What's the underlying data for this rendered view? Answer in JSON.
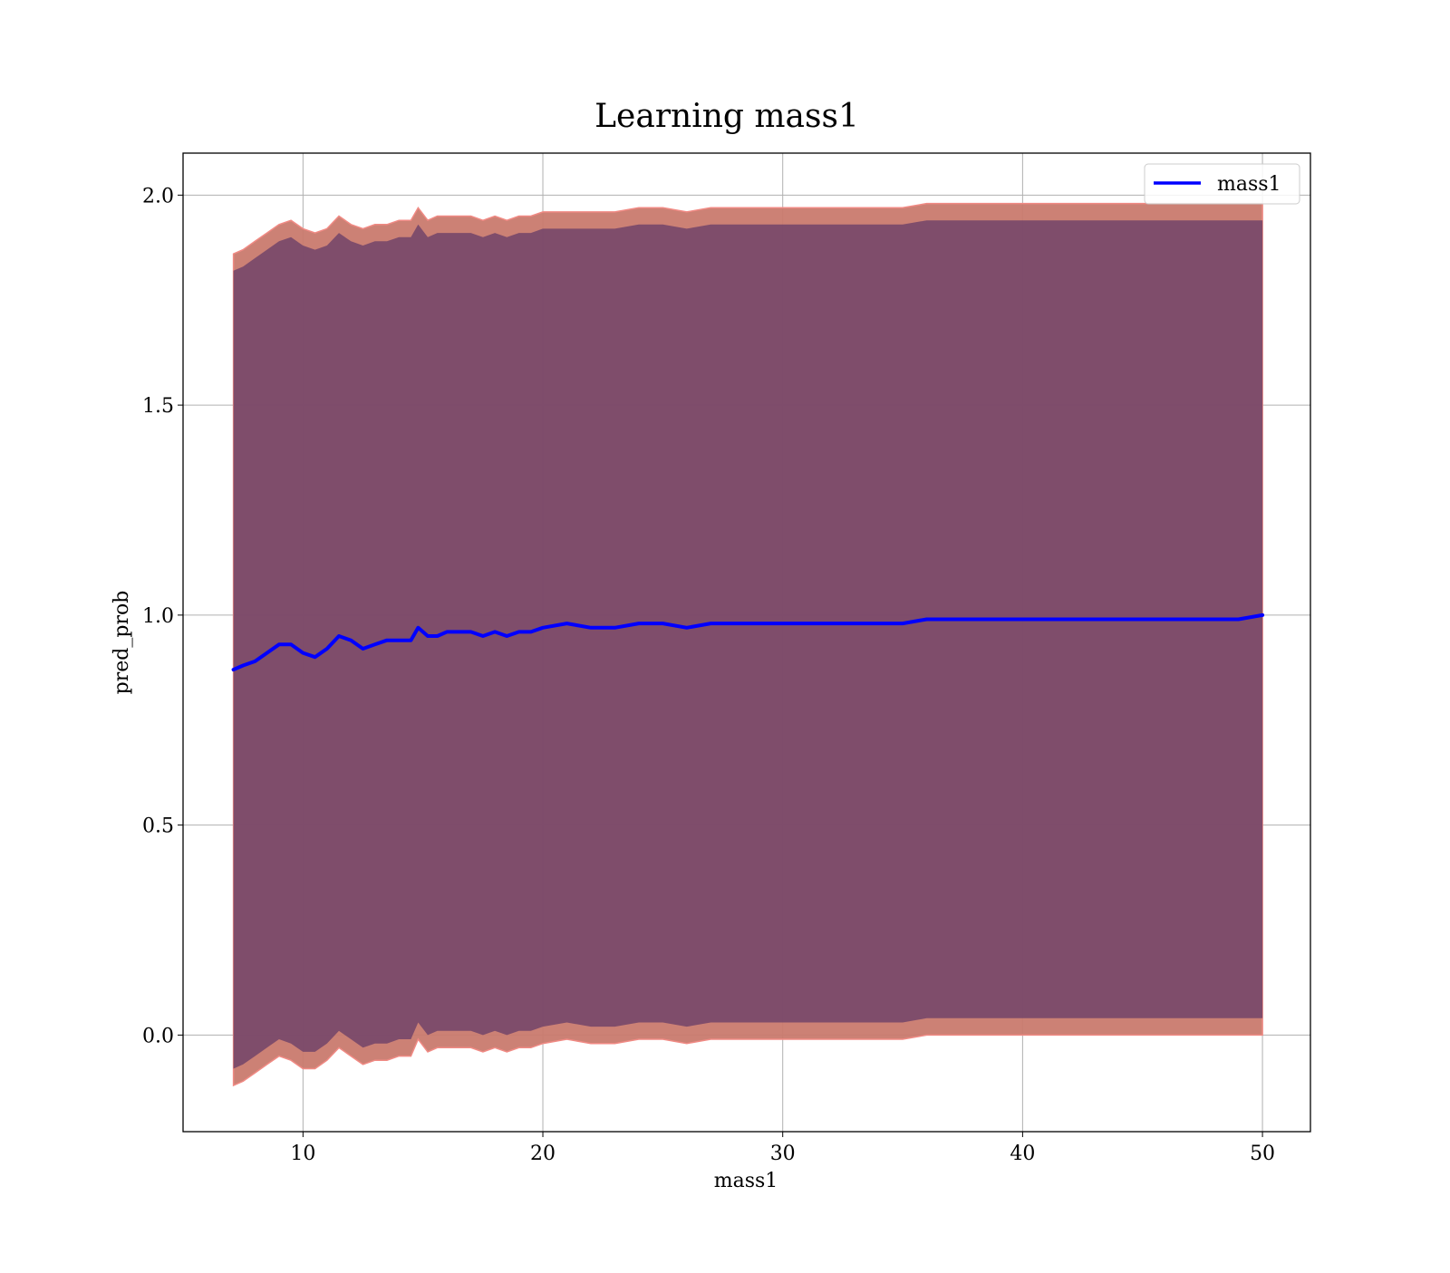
{
  "chart_data": {
    "type": "line",
    "title": "Learning mass1",
    "xlabel": "mass1",
    "ylabel": "pred_prob",
    "xlim": [
      5,
      52
    ],
    "ylim": [
      -0.23,
      2.1
    ],
    "xticks": [
      10,
      20,
      30,
      40,
      50
    ],
    "xtick_labels": [
      "10",
      "20",
      "30",
      "40",
      "50"
    ],
    "yticks": [
      0.0,
      0.5,
      1.0,
      1.5,
      2.0
    ],
    "ytick_labels": [
      "0.0",
      "0.5",
      "1.0",
      "1.5",
      "2.0"
    ],
    "grid": true,
    "legend": {
      "location": "top-right",
      "entries": [
        "mass1"
      ]
    },
    "series": [
      {
        "name": "mass1",
        "color": "#0000ff",
        "x": [
          7.1,
          7.5,
          8.0,
          8.5,
          9.0,
          9.5,
          10.0,
          10.5,
          11.0,
          11.5,
          12.0,
          12.5,
          13.0,
          13.5,
          14.0,
          14.5,
          14.8,
          15.2,
          15.6,
          16.0,
          16.5,
          17.0,
          17.5,
          18.0,
          18.5,
          19.0,
          19.5,
          20.0,
          21.0,
          22.0,
          23.0,
          24.0,
          25.0,
          26.0,
          27.0,
          28.0,
          29.0,
          30.0,
          31.0,
          32.0,
          33.0,
          34.0,
          35.0,
          36.0,
          37.0,
          38.0,
          39.0,
          40.0,
          41.0,
          42.0,
          43.0,
          44.0,
          45.0,
          46.0,
          47.0,
          48.0,
          49.0,
          50.0
        ],
        "y": [
          0.87,
          0.88,
          0.89,
          0.91,
          0.93,
          0.93,
          0.91,
          0.9,
          0.92,
          0.95,
          0.94,
          0.92,
          0.93,
          0.94,
          0.94,
          0.94,
          0.97,
          0.95,
          0.95,
          0.96,
          0.96,
          0.96,
          0.95,
          0.96,
          0.95,
          0.96,
          0.96,
          0.97,
          0.98,
          0.97,
          0.97,
          0.98,
          0.98,
          0.97,
          0.98,
          0.98,
          0.98,
          0.98,
          0.98,
          0.98,
          0.98,
          0.98,
          0.98,
          0.99,
          0.99,
          0.99,
          0.99,
          0.99,
          0.99,
          0.99,
          0.99,
          0.99,
          0.99,
          0.99,
          0.99,
          0.99,
          0.99,
          1.0
        ]
      }
    ],
    "bands": [
      {
        "color": "#c97a6e",
        "upper": [
          1.86,
          1.87,
          1.89,
          1.91,
          1.93,
          1.94,
          1.92,
          1.91,
          1.92,
          1.95,
          1.93,
          1.92,
          1.93,
          1.93,
          1.94,
          1.94,
          1.97,
          1.94,
          1.95,
          1.95,
          1.95,
          1.95,
          1.94,
          1.95,
          1.94,
          1.95,
          1.95,
          1.96,
          1.96,
          1.96,
          1.96,
          1.97,
          1.97,
          1.96,
          1.97,
          1.97,
          1.97,
          1.97,
          1.97,
          1.97,
          1.97,
          1.97,
          1.97,
          1.98,
          1.98,
          1.98,
          1.98,
          1.98,
          1.98,
          1.98,
          1.98,
          1.98,
          1.98,
          1.98,
          1.98,
          1.98,
          1.98,
          1.98
        ],
        "lower": [
          -0.12,
          -0.11,
          -0.09,
          -0.07,
          -0.05,
          -0.06,
          -0.08,
          -0.08,
          -0.06,
          -0.03,
          -0.05,
          -0.07,
          -0.06,
          -0.06,
          -0.05,
          -0.05,
          -0.01,
          -0.04,
          -0.03,
          -0.03,
          -0.03,
          -0.03,
          -0.04,
          -0.03,
          -0.04,
          -0.03,
          -0.03,
          -0.02,
          -0.01,
          -0.02,
          -0.02,
          -0.01,
          -0.01,
          -0.02,
          -0.01,
          -0.01,
          -0.01,
          -0.01,
          -0.01,
          -0.01,
          -0.01,
          -0.01,
          -0.01,
          0.0,
          0.0,
          0.0,
          0.0,
          0.0,
          0.0,
          0.0,
          0.0,
          0.0,
          0.0,
          0.0,
          0.0,
          0.0,
          0.0,
          0.0
        ]
      },
      {
        "color": "#7a4a6a",
        "upper": [
          1.82,
          1.83,
          1.85,
          1.87,
          1.89,
          1.9,
          1.88,
          1.87,
          1.88,
          1.91,
          1.89,
          1.88,
          1.89,
          1.89,
          1.9,
          1.9,
          1.93,
          1.9,
          1.91,
          1.91,
          1.91,
          1.91,
          1.9,
          1.91,
          1.9,
          1.91,
          1.91,
          1.92,
          1.92,
          1.92,
          1.92,
          1.93,
          1.93,
          1.92,
          1.93,
          1.93,
          1.93,
          1.93,
          1.93,
          1.93,
          1.93,
          1.93,
          1.93,
          1.94,
          1.94,
          1.94,
          1.94,
          1.94,
          1.94,
          1.94,
          1.94,
          1.94,
          1.94,
          1.94,
          1.94,
          1.94,
          1.94,
          1.94
        ],
        "lower": [
          -0.08,
          -0.07,
          -0.05,
          -0.03,
          -0.01,
          -0.02,
          -0.04,
          -0.04,
          -0.02,
          0.01,
          -0.01,
          -0.03,
          -0.02,
          -0.02,
          -0.01,
          -0.01,
          0.03,
          0.0,
          0.01,
          0.01,
          0.01,
          0.01,
          0.0,
          0.01,
          0.0,
          0.01,
          0.01,
          0.02,
          0.03,
          0.02,
          0.02,
          0.03,
          0.03,
          0.02,
          0.03,
          0.03,
          0.03,
          0.03,
          0.03,
          0.03,
          0.03,
          0.03,
          0.03,
          0.04,
          0.04,
          0.04,
          0.04,
          0.04,
          0.04,
          0.04,
          0.04,
          0.04,
          0.04,
          0.04,
          0.04,
          0.04,
          0.04,
          0.04
        ]
      }
    ]
  }
}
